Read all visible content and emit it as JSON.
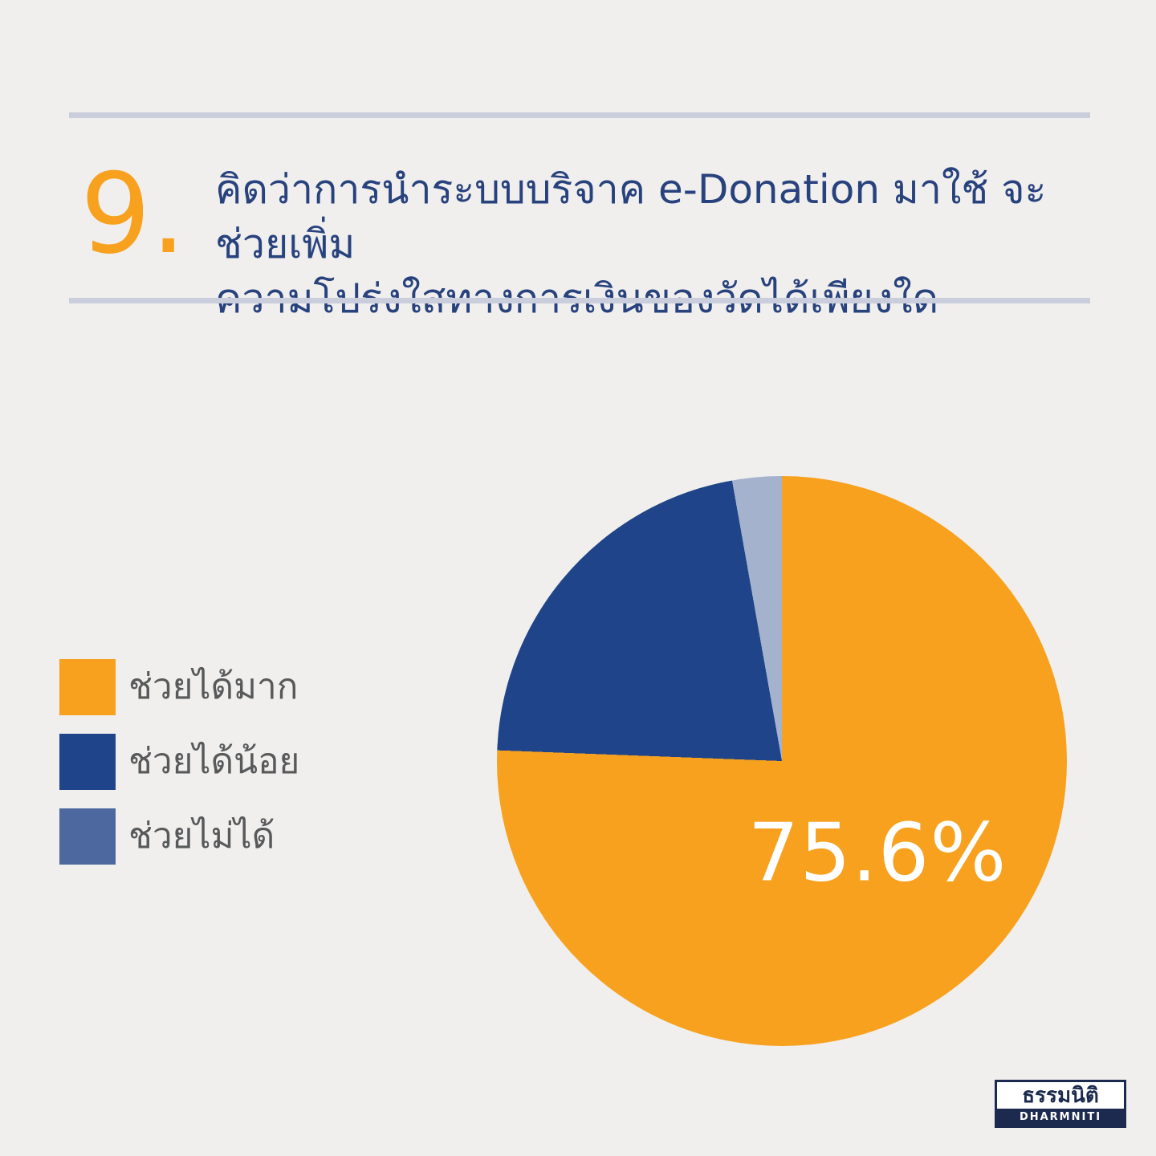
{
  "page": {
    "background_color": "#F0EFED",
    "rule_color": "#C9CDDC"
  },
  "header": {
    "number": "9.",
    "number_color": "#F7A11E",
    "title_line1": "คิดว่าการนำระบบบริจาค e-Donation มาใช้ จะช่วยเพิ่ม",
    "title_line2": "ความโปร่งใสทางการเงินของวัดได้เพียงใด",
    "title_color": "#28427E"
  },
  "legend": {
    "text_color": "#58595B",
    "items": [
      {
        "label": "ช่วยได้มาก",
        "color": "#F7A11E"
      },
      {
        "label": "ช่วยได้น้อย",
        "color": "#1F4489"
      },
      {
        "label": "ช่วยไม่ได้",
        "color": "#4C689F"
      }
    ]
  },
  "chart_data": {
    "type": "pie",
    "title": "คิดว่าการนำระบบบริจาค e-Donation มาใช้ จะช่วยเพิ่มความโปร่งใสทางการเงินของวัดได้เพียงใด",
    "start_angle_deg": 0,
    "direction": "clockwise",
    "series": [
      {
        "label": "ช่วยได้มาก",
        "value": 75.6,
        "color": "#F7A11E"
      },
      {
        "label": "ช่วยได้น้อย",
        "value": 21.6,
        "color": "#1F4489"
      },
      {
        "label": "ช่วยไม่ได้",
        "value": 2.8,
        "color": "#A4B2CE"
      }
    ],
    "value_label": {
      "text": "75.6%",
      "color": "#FFFFFF",
      "slice": "ช่วยได้มาก"
    },
    "legend_position": "left"
  },
  "logo": {
    "thai": "ธรรมนิติ",
    "latin": "DHARMNITI",
    "navy": "#1B2A4E"
  }
}
